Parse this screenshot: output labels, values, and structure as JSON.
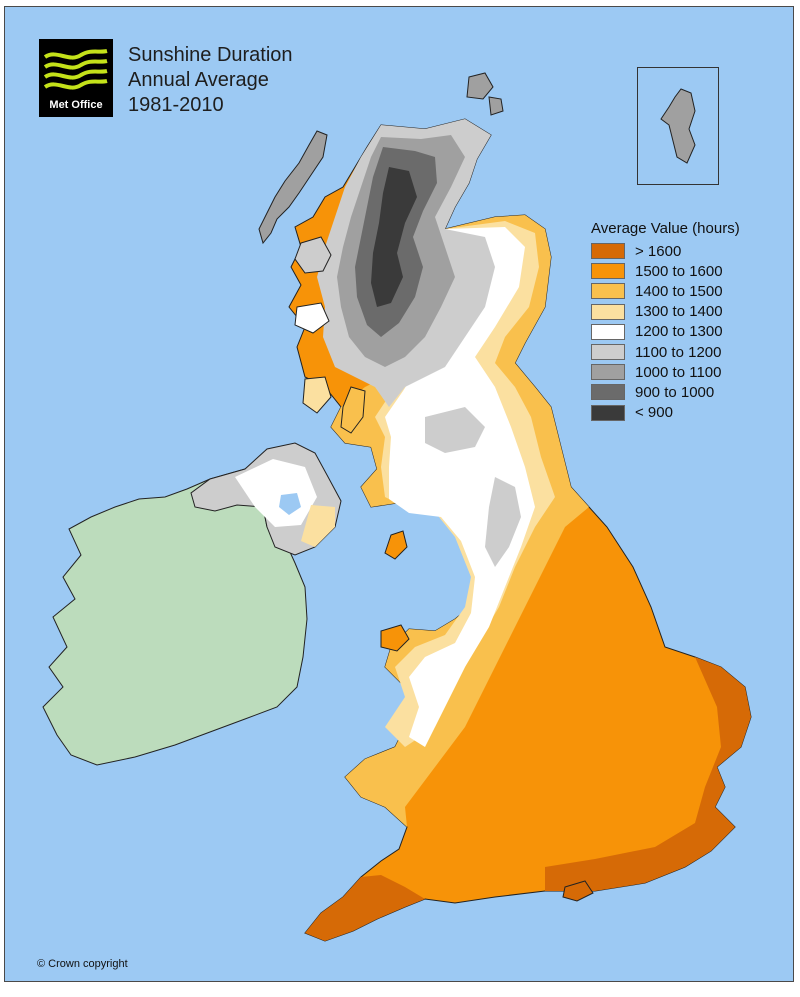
{
  "map": {
    "title_lines": [
      "Sunshine Duration",
      "Annual Average",
      "1981-2010"
    ],
    "logo_text": "Met Office",
    "copyright": "© Crown copyright",
    "legend": {
      "title": "Average Value (hours)",
      "classes": [
        {
          "label": "> 1600",
          "color": "#d66a06"
        },
        {
          "label": "1500 to 1600",
          "color": "#f79308"
        },
        {
          "label": "1400 to 1500",
          "color": "#f9c04d"
        },
        {
          "label": "1300 to 1400",
          "color": "#fbe0a0"
        },
        {
          "label": "1200 to 1300",
          "color": "#ffffff"
        },
        {
          "label": "1100 to 1200",
          "color": "#cdcdcd"
        },
        {
          "label": "1000 to 1100",
          "color": "#a0a0a0"
        },
        {
          "label": "900 to 1000",
          "color": "#6b6b6b"
        },
        {
          "label": "< 900",
          "color": "#3a3a3a"
        }
      ]
    },
    "colors": {
      "sea": "#9cc9f3",
      "ireland_land": "#bcdcbc",
      "coastline": "#222222"
    }
  }
}
